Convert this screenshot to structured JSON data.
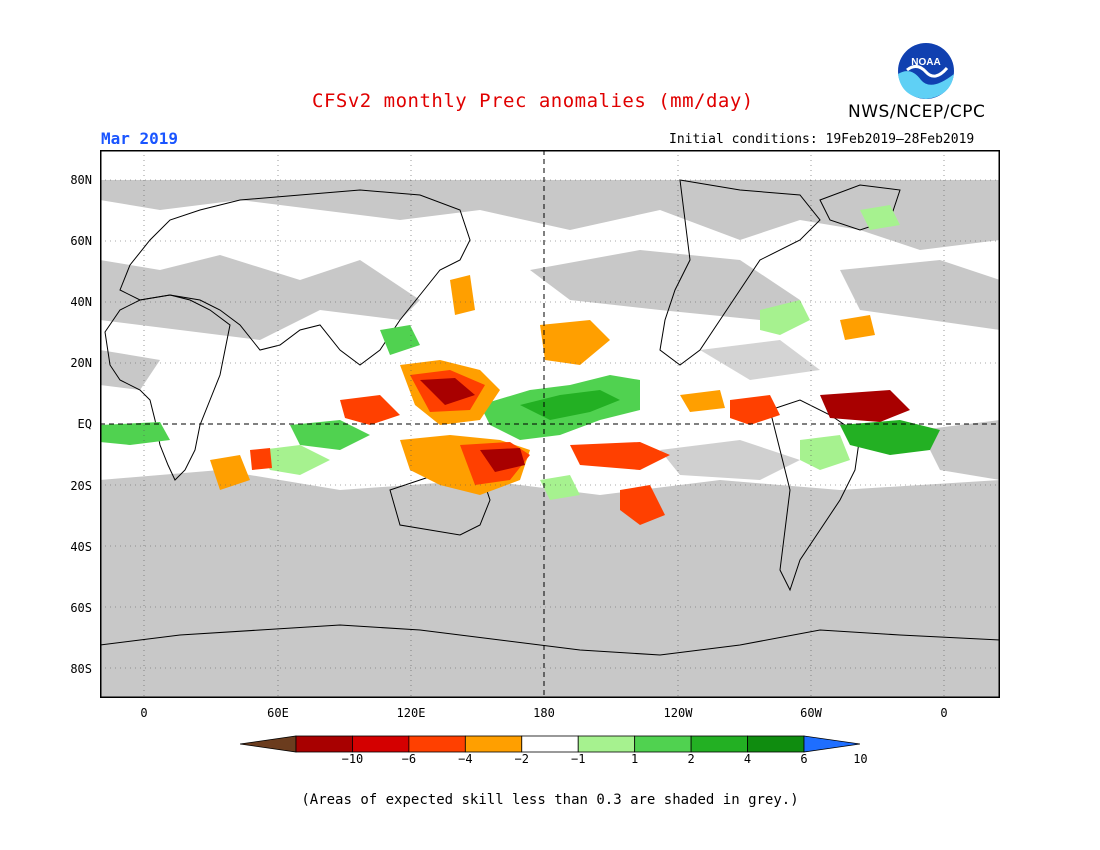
{
  "header": {
    "title": "CFSv2 monthly Prec anomalies (mm/day)",
    "agency": "NWS/NCEP/CPC",
    "month": "Mar 2019",
    "initial_conditions": "Initial conditions: 19Feb2019–28Feb2019"
  },
  "logo": {
    "text": "NOAA"
  },
  "axes": {
    "lat_labels": [
      "80N",
      "60N",
      "40N",
      "20N",
      "EQ",
      "20S",
      "40S",
      "60S",
      "80S"
    ],
    "lon_labels": [
      "0",
      "60E",
      "120E",
      "180",
      "120W",
      "60W",
      "0"
    ]
  },
  "colorbar": {
    "ticks": [
      "−10",
      "−6",
      "−4",
      "−2",
      "−1",
      "1",
      "2",
      "4",
      "6",
      "10"
    ],
    "colors": [
      "#6b3c1e",
      "#a80000",
      "#d40000",
      "#ff4000",
      "#ff9f00",
      "#ffffff",
      "#a6f28f",
      "#50d250",
      "#23b023",
      "#0f8c0f",
      "#1e6eff"
    ]
  },
  "footnote": "(Areas of expected skill less than 0.3 are shaded in grey.)"
}
